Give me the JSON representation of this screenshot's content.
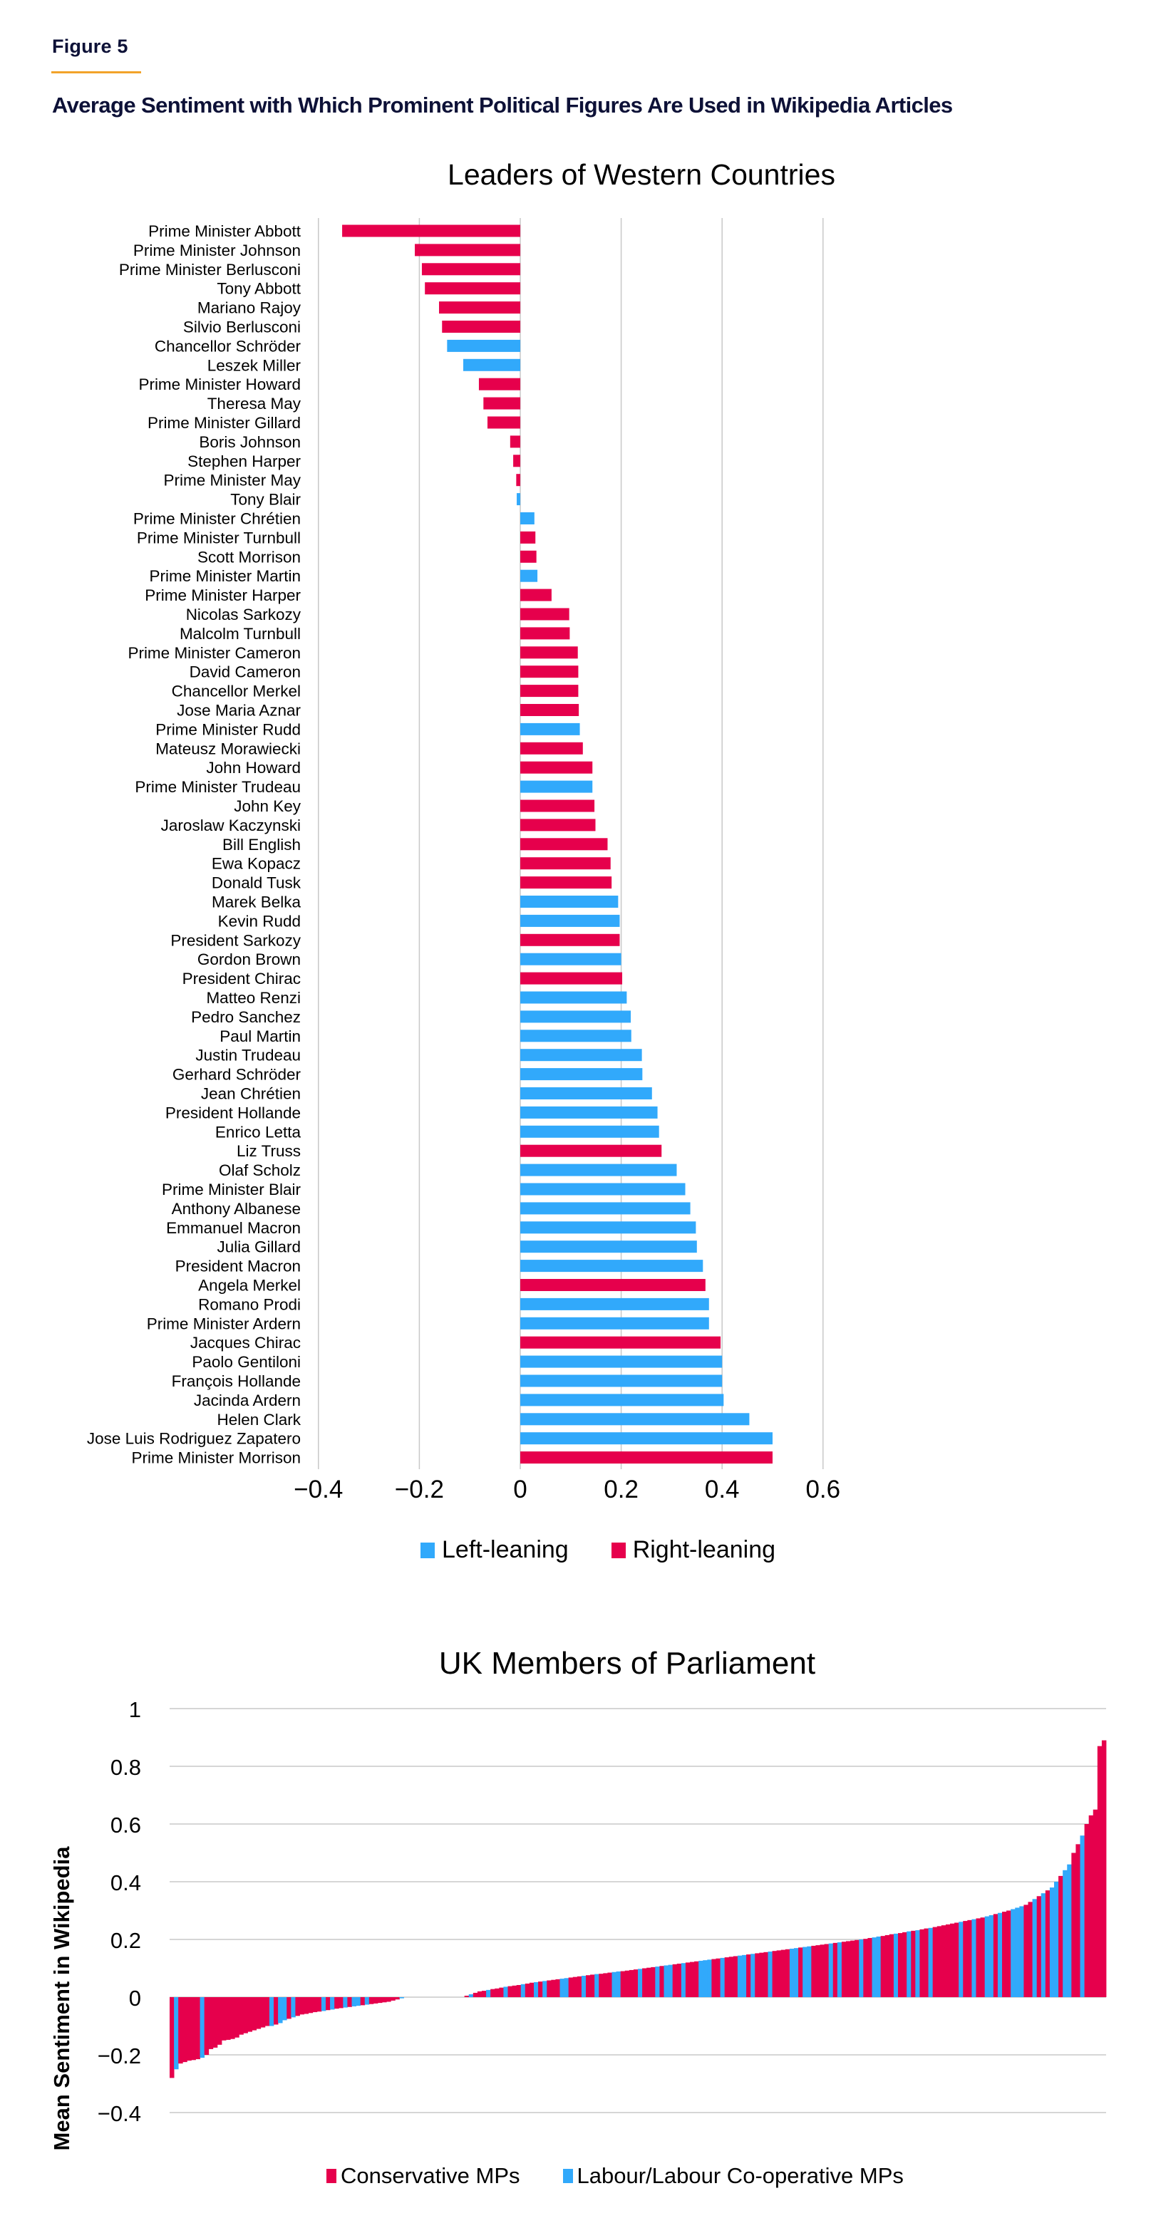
{
  "header": {
    "figure_label": "Figure 5",
    "title": "Average Sentiment with Which Prominent Political Figures Are Used in Wikipedia Articles"
  },
  "colors": {
    "left": "#31a9fb",
    "right": "#e6004c",
    "navy": "#0d1137",
    "accent": "#f2a32a",
    "grid": "#c8c8c8"
  },
  "chart_data": [
    {
      "type": "bar",
      "orientation": "horizontal",
      "title": "Leaders of Western Countries",
      "xlabel": "",
      "ylabel": "",
      "xlim": [
        -0.4,
        0.6
      ],
      "x_ticks": [
        "−0.4",
        "−0.2",
        "0",
        "0.2",
        "0.4",
        "0.6"
      ],
      "x_tick_values": [
        -0.4,
        -0.2,
        0,
        0.2,
        0.4,
        0.6
      ],
      "grid": true,
      "legend": [
        {
          "key": "L",
          "label": "Left-leaning"
        },
        {
          "key": "R",
          "label": "Right-leaning"
        }
      ],
      "legend_position": "bottom",
      "categories": [
        "Prime Minister Abbott",
        "Prime Minister Johnson",
        "Prime Minister Berlusconi",
        "Tony Abbott",
        "Mariano Rajoy",
        "Silvio Berlusconi",
        "Chancellor Schröder",
        "Leszek Miller",
        "Prime Minister Howard",
        "Theresa May",
        "Prime Minister Gillard",
        "Boris Johnson",
        "Stephen Harper",
        "Prime Minister May",
        "Tony Blair",
        "Prime Minister Chrétien",
        "Prime Minister Turnbull",
        "Scott Morrison",
        "Prime Minister Martin",
        "Prime Minister Harper",
        "Nicolas Sarkozy",
        "Malcolm Turnbull",
        "Prime Minister Cameron",
        "David Cameron",
        "Chancellor Merkel",
        "Jose Maria Aznar",
        "Prime Minister Rudd",
        "Mateusz Morawiecki",
        "John Howard",
        "Prime Minister Trudeau",
        "John Key",
        "Jaroslaw Kaczynski",
        "Bill English",
        "Ewa Kopacz",
        "Donald Tusk",
        "Marek Belka",
        "Kevin Rudd",
        "President Sarkozy",
        "Gordon Brown",
        "President Chirac",
        "Matteo Renzi",
        "Pedro Sanchez",
        "Paul Martin",
        "Justin Trudeau",
        "Gerhard Schröder",
        "Jean Chrétien",
        "President Hollande",
        "Enrico Letta",
        "Liz Truss",
        "Olaf Scholz",
        "Prime Minister Blair",
        "Anthony Albanese",
        "Emmanuel Macron",
        "Julia Gillard",
        "President Macron",
        "Angela Merkel",
        "Romano Prodi",
        "Prime Minister Ardern",
        "Jacques Chirac",
        "Paolo Gentiloni",
        "François Hollande",
        "Jacinda Ardern",
        "Helen Clark",
        "Jose Luis Rodriguez Zapatero",
        "Prime Minister Morrison"
      ],
      "values": [
        -0.353,
        -0.209,
        -0.195,
        -0.189,
        -0.161,
        -0.155,
        -0.145,
        -0.113,
        -0.082,
        -0.073,
        -0.065,
        -0.02,
        -0.014,
        -0.008,
        -0.007,
        0.028,
        0.03,
        0.032,
        0.034,
        0.062,
        0.097,
        0.098,
        0.114,
        0.115,
        0.115,
        0.116,
        0.118,
        0.124,
        0.143,
        0.143,
        0.147,
        0.149,
        0.173,
        0.179,
        0.181,
        0.194,
        0.197,
        0.197,
        0.2,
        0.202,
        0.211,
        0.219,
        0.22,
        0.241,
        0.242,
        0.261,
        0.272,
        0.275,
        0.28,
        0.31,
        0.327,
        0.337,
        0.348,
        0.35,
        0.362,
        0.367,
        0.374,
        0.374,
        0.397,
        0.4,
        0.4,
        0.403,
        0.454,
        0.5,
        0.5
      ],
      "leaning": [
        "R",
        "R",
        "R",
        "R",
        "R",
        "R",
        "L",
        "L",
        "R",
        "R",
        "R",
        "R",
        "R",
        "R",
        "L",
        "L",
        "R",
        "R",
        "L",
        "R",
        "R",
        "R",
        "R",
        "R",
        "R",
        "R",
        "L",
        "R",
        "R",
        "L",
        "R",
        "R",
        "R",
        "R",
        "R",
        "L",
        "L",
        "R",
        "L",
        "R",
        "L",
        "L",
        "L",
        "L",
        "L",
        "L",
        "L",
        "L",
        "R",
        "L",
        "L",
        "L",
        "L",
        "L",
        "L",
        "R",
        "L",
        "L",
        "R",
        "L",
        "L",
        "L",
        "L",
        "L",
        "R"
      ]
    },
    {
      "type": "bar",
      "orientation": "vertical",
      "title": "UK Members of Parliament",
      "xlabel": "",
      "ylabel": "Mean Sentiment in Wikipedia",
      "ylim": [
        -0.4,
        1
      ],
      "y_ticks": [
        "1",
        "0.8",
        "0.6",
        "0.4",
        "0.2",
        "0",
        "−0.2",
        "−0.4"
      ],
      "y_tick_values": [
        1,
        0.8,
        0.6,
        0.4,
        0.2,
        0,
        -0.2,
        -0.4
      ],
      "grid": true,
      "legend": [
        {
          "key": "C",
          "label": "Conservative MPs"
        },
        {
          "key": "L",
          "label": "Labour/Labour Co-operative MPs"
        }
      ],
      "legend_position": "bottom",
      "note": "values sorted ascending, one bar per MP; party C = Conservative, L = Labour/Labour Co-operative",
      "values": [
        -0.28,
        -0.25,
        -0.23,
        -0.225,
        -0.22,
        -0.218,
        -0.215,
        -0.21,
        -0.2,
        -0.18,
        -0.175,
        -0.165,
        -0.15,
        -0.148,
        -0.145,
        -0.14,
        -0.13,
        -0.125,
        -0.12,
        -0.115,
        -0.11,
        -0.105,
        -0.1,
        -0.1,
        -0.095,
        -0.09,
        -0.08,
        -0.075,
        -0.07,
        -0.065,
        -0.06,
        -0.058,
        -0.055,
        -0.052,
        -0.05,
        -0.048,
        -0.045,
        -0.043,
        -0.04,
        -0.038,
        -0.036,
        -0.034,
        -0.032,
        -0.03,
        -0.028,
        -0.026,
        -0.024,
        -0.022,
        -0.02,
        -0.018,
        -0.016,
        -0.012,
        -0.008,
        -0.004,
        0,
        0,
        0,
        0,
        0,
        0,
        0,
        0,
        0,
        0,
        0,
        0,
        0,
        0,
        0.005,
        0.01,
        0.015,
        0.02,
        0.022,
        0.025,
        0.028,
        0.03,
        0.033,
        0.036,
        0.038,
        0.04,
        0.042,
        0.045,
        0.047,
        0.05,
        0.052,
        0.054,
        0.056,
        0.058,
        0.06,
        0.062,
        0.064,
        0.066,
        0.068,
        0.07,
        0.072,
        0.074,
        0.076,
        0.078,
        0.08,
        0.081,
        0.083,
        0.085,
        0.087,
        0.089,
        0.09,
        0.092,
        0.094,
        0.096,
        0.098,
        0.1,
        0.102,
        0.104,
        0.106,
        0.108,
        0.11,
        0.112,
        0.114,
        0.116,
        0.118,
        0.12,
        0.122,
        0.124,
        0.126,
        0.128,
        0.13,
        0.132,
        0.134,
        0.136,
        0.138,
        0.14,
        0.142,
        0.144,
        0.146,
        0.148,
        0.15,
        0.152,
        0.154,
        0.156,
        0.158,
        0.16,
        0.162,
        0.164,
        0.166,
        0.168,
        0.17,
        0.172,
        0.174,
        0.176,
        0.178,
        0.18,
        0.182,
        0.184,
        0.186,
        0.188,
        0.19,
        0.192,
        0.194,
        0.196,
        0.198,
        0.2,
        0.202,
        0.205,
        0.207,
        0.21,
        0.212,
        0.215,
        0.218,
        0.22,
        0.222,
        0.225,
        0.228,
        0.23,
        0.232,
        0.235,
        0.238,
        0.24,
        0.243,
        0.246,
        0.249,
        0.252,
        0.255,
        0.258,
        0.261,
        0.264,
        0.267,
        0.27,
        0.273,
        0.276,
        0.28,
        0.284,
        0.288,
        0.292,
        0.296,
        0.3,
        0.305,
        0.31,
        0.315,
        0.32,
        0.33,
        0.34,
        0.35,
        0.36,
        0.37,
        0.38,
        0.4,
        0.42,
        0.44,
        0.46,
        0.5,
        0.53,
        0.56,
        0.6,
        0.63,
        0.65,
        0.87,
        0.89
      ],
      "party": [
        "C",
        "L",
        "C",
        "C",
        "C",
        "C",
        "C",
        "L",
        "C",
        "C",
        "C",
        "C",
        "C",
        "C",
        "C",
        "C",
        "C",
        "C",
        "C",
        "C",
        "C",
        "C",
        "C",
        "L",
        "C",
        "L",
        "L",
        "C",
        "L",
        "C",
        "C",
        "C",
        "C",
        "C",
        "C",
        "L",
        "C",
        "L",
        "C",
        "C",
        "L",
        "C",
        "L",
        "L",
        "C",
        "L",
        "C",
        "C",
        "C",
        "C",
        "C",
        "C",
        "C",
        "L",
        "L",
        "L",
        "L",
        "L",
        "L",
        "L",
        "L",
        "L",
        "L",
        "L",
        "L",
        "L",
        "L",
        "L",
        "C",
        "L",
        "C",
        "C",
        "C",
        "L",
        "C",
        "C",
        "C",
        "L",
        "C",
        "C",
        "C",
        "L",
        "C",
        "C",
        "L",
        "C",
        "L",
        "C",
        "C",
        "C",
        "L",
        "L",
        "C",
        "C",
        "C",
        "L",
        "C",
        "C",
        "L",
        "C",
        "C",
        "C",
        "L",
        "L",
        "C",
        "C",
        "C",
        "C",
        "L",
        "C",
        "C",
        "C",
        "L",
        "C",
        "L",
        "L",
        "C",
        "C",
        "L",
        "C",
        "C",
        "C",
        "L",
        "L",
        "L",
        "C",
        "C",
        "L",
        "C",
        "C",
        "C",
        "L",
        "L",
        "C",
        "L",
        "C",
        "C",
        "C",
        "L",
        "C",
        "C",
        "C",
        "C",
        "L",
        "L",
        "C",
        "L",
        "L",
        "C",
        "C",
        "C",
        "C",
        "L",
        "C",
        "L",
        "C",
        "C",
        "C",
        "C",
        "L",
        "C",
        "C",
        "L",
        "L",
        "C",
        "C",
        "C",
        "L",
        "C",
        "C",
        "L",
        "C",
        "L",
        "C",
        "C",
        "L",
        "C",
        "C",
        "C",
        "C",
        "C",
        "C",
        "L",
        "C",
        "C",
        "L",
        "C",
        "C",
        "L",
        "L",
        "C",
        "L",
        "C",
        "C",
        "L",
        "L",
        "L",
        "C",
        "C",
        "L",
        "C",
        "L",
        "C",
        "L",
        "L",
        "C",
        "L",
        "L",
        "C",
        "C",
        "L",
        "C"
      ]
    }
  ]
}
